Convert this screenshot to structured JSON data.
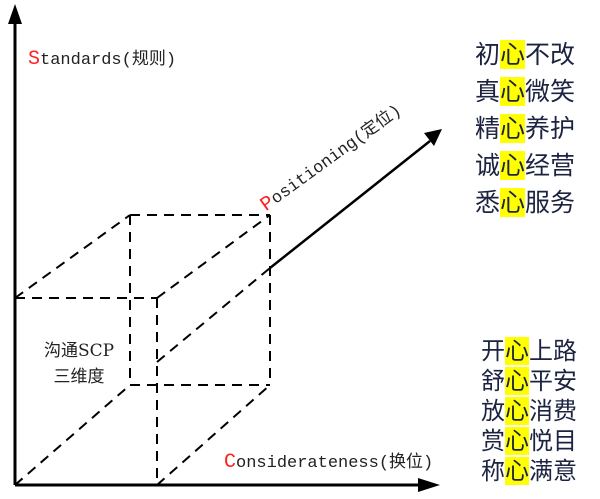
{
  "axes": {
    "standards": {
      "first": "S",
      "rest": "tandards(规则)"
    },
    "positioning": {
      "first": "P",
      "rest": "ositioning(定位)"
    },
    "considerateness": {
      "first": "C",
      "rest": "onsiderateness(换位)"
    }
  },
  "center_label": {
    "line1": "沟通SCP",
    "line2": "三维度"
  },
  "top_phrases": [
    {
      "pre": "初",
      "key": "心",
      "post": "不改"
    },
    {
      "pre": "真",
      "key": "心",
      "post": "微笑"
    },
    {
      "pre": "精",
      "key": "心",
      "post": "养护"
    },
    {
      "pre": "诚",
      "key": "心",
      "post": "经营"
    },
    {
      "pre": "悉",
      "key": "心",
      "post": "服务"
    }
  ],
  "bottom_phrases": [
    {
      "pre": "开",
      "key": "心",
      "post": "上路"
    },
    {
      "pre": "舒",
      "key": "心",
      "post": "平安"
    },
    {
      "pre": "放",
      "key": "心",
      "post": "消费"
    },
    {
      "pre": "赏",
      "key": "心",
      "post": "悦目"
    },
    {
      "pre": "称",
      "key": "心",
      "post": "满意"
    }
  ],
  "colors": {
    "axis_initial": "#ff2020",
    "highlight": "#ffff00",
    "text": "#1c2340",
    "lines": "#000000"
  }
}
